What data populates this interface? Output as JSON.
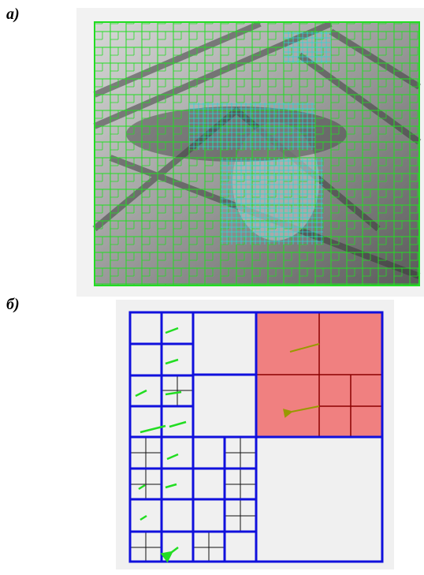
{
  "panels": [
    {
      "label": "а)"
    },
    {
      "label": "б)"
    }
  ]
}
